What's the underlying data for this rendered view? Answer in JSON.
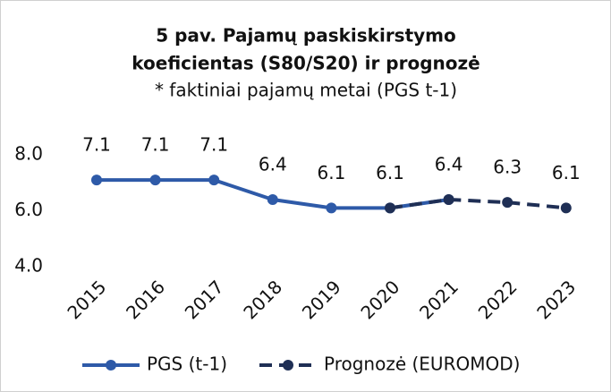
{
  "chart_data": {
    "type": "line",
    "title": [
      "5 pav. Pajamų paskiskirstymo",
      "koeficientas (S80/S20) ir prognozė"
    ],
    "subtitle": "* faktiniai pajamų metai (PGS t-1)",
    "categories": [
      "2015",
      "2016",
      "2017",
      "2018",
      "2019",
      "2020",
      "2021",
      "2022",
      "2023"
    ],
    "series": [
      {
        "name": "PGS (t-1)",
        "color": "#2e5aa8",
        "dashed": false,
        "values": [
          7.1,
          7.1,
          7.1,
          6.4,
          6.1,
          6.1,
          6.4,
          null,
          null
        ]
      },
      {
        "name": "Prognozė (EUROMOD)",
        "color": "#1f2f55",
        "dashed": true,
        "values": [
          null,
          null,
          null,
          null,
          null,
          6.1,
          6.4,
          6.3,
          6.1
        ]
      }
    ],
    "ylim": [
      4.0,
      8.0
    ],
    "yticks": [
      {
        "value": 4.0,
        "label": "4.0"
      },
      {
        "value": 6.0,
        "label": "6.0"
      },
      {
        "value": 8.0,
        "label": "8.0"
      }
    ],
    "grid": false,
    "legend": "bottom"
  }
}
